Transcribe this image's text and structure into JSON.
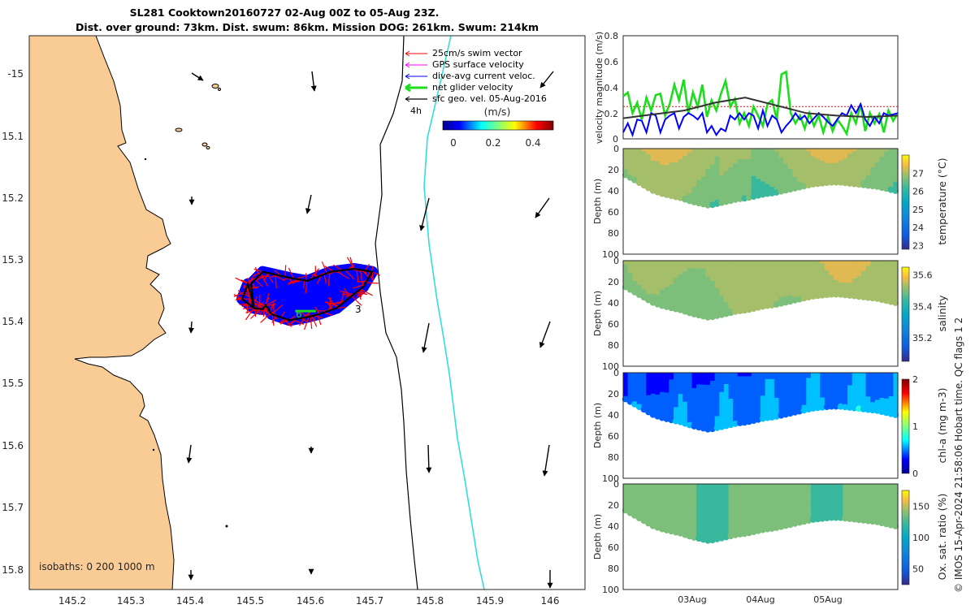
{
  "title": {
    "line1": "SL281 Cooktown20160727 02-Aug 00Z to 05-Aug 23Z.",
    "line2": "Dist. over ground: 73km. Dist. swum: 86km. Mission DOG: 261km. Swum: 214km"
  },
  "colors": {
    "land": "#f9cb95",
    "track_red": "#ff0000",
    "track_blue": "#0000ff",
    "track_black": "#000000",
    "current_green": "#1edc1e",
    "isobath_cyan": "#33dddd"
  },
  "chart_data": [
    {
      "id": "map",
      "type": "scatter",
      "title": "SL281 Cooktown20160727 02-Aug 00Z to 05-Aug 23Z.",
      "x_ticks": [
        "145.2",
        "145.3",
        "145.4",
        "145.5",
        "145.6",
        "145.7",
        "145.8",
        "145.9",
        "146"
      ],
      "y_ticks": [
        "-15",
        "15.1",
        "15.2",
        "15.3",
        "15.4",
        "15.5",
        "15.6",
        "15.7",
        "15.8"
      ],
      "xlim": [
        145.13,
        146.07
      ],
      "ylim": [
        -15.845,
        -14.93
      ],
      "legend": {
        "position": "top-right",
        "items": [
          {
            "label": "25cm/s swim vector",
            "color": "#ff0000"
          },
          {
            "label": "GPS surface velocity",
            "color": "#ff00ff"
          },
          {
            "label": "dive-avg current veloc.",
            "color": "#0000ff"
          },
          {
            "label": "net glider velocity",
            "color": "#1edc1e"
          },
          {
            "label": "sfc geo. vel. 05-Aug-2016",
            "color": "#000000"
          }
        ],
        "scale_label": "4h"
      },
      "colorbar": {
        "label": "(m/s)",
        "ticks": [
          "0",
          "0.2",
          "0.4"
        ],
        "range": [
          0,
          0.5
        ]
      },
      "isobaths_label": "isobaths: 0   200  1000 m",
      "track_labels": [
        "6",
        "3"
      ],
      "track": [
        [
          145.51,
          -15.38
        ],
        [
          145.505,
          -15.34
        ],
        [
          145.525,
          -15.32
        ],
        [
          145.57,
          -15.33
        ],
        [
          145.6,
          -15.335
        ],
        [
          145.64,
          -15.32
        ],
        [
          145.68,
          -15.315
        ],
        [
          145.71,
          -15.32
        ],
        [
          145.695,
          -15.345
        ],
        [
          145.675,
          -15.36
        ],
        [
          145.65,
          -15.38
        ],
        [
          145.62,
          -15.39
        ],
        [
          145.6,
          -15.395
        ],
        [
          145.57,
          -15.4
        ],
        [
          145.54,
          -15.39
        ],
        [
          145.53,
          -15.375
        ],
        [
          145.525,
          -15.382
        ],
        [
          145.51,
          -15.38
        ],
        [
          145.49,
          -15.365
        ],
        [
          145.5,
          -15.34
        ]
      ],
      "geo_vectors": [
        [
          145.4,
          -15.0
        ],
        [
          145.6,
          -15.0
        ],
        [
          145.8,
          -15.0
        ],
        [
          145.99,
          -15.0
        ],
        [
          145.4,
          -15.2
        ],
        [
          145.6,
          -15.2
        ],
        [
          145.8,
          -15.2
        ],
        [
          145.99,
          -15.2
        ],
        [
          145.4,
          -15.4
        ],
        [
          145.6,
          -15.4
        ],
        [
          145.8,
          -15.4
        ],
        [
          145.99,
          -15.4
        ],
        [
          145.4,
          -15.6
        ],
        [
          145.6,
          -15.6
        ],
        [
          145.8,
          -15.6
        ],
        [
          145.99,
          -15.6
        ],
        [
          145.4,
          -15.8
        ],
        [
          145.6,
          -15.8
        ],
        [
          145.8,
          -15.8
        ],
        [
          145.99,
          -15.8
        ]
      ]
    },
    {
      "id": "velocity",
      "type": "line",
      "ylabel": "velocity magnitude (m/s)",
      "ylim": [
        0,
        0.8
      ],
      "y_ticks": [
        "0",
        "0.2",
        "0.4",
        "0.6",
        "0.8"
      ],
      "reference_value": 0.25,
      "series": [
        {
          "name": "net glider velocity",
          "color": "#1edc1e",
          "values": [
            0.33,
            0.36,
            0.2,
            0.28,
            0.15,
            0.32,
            0.22,
            0.34,
            0.35,
            0.18,
            0.27,
            0.42,
            0.3,
            0.46,
            0.2,
            0.36,
            0.25,
            0.42,
            0.17,
            0.3,
            0.22,
            0.35,
            0.45,
            0.25,
            0.31,
            0.12,
            0.2,
            0.1,
            0.25,
            0.18,
            0.1,
            0.27,
            0.3,
            0.15,
            0.5,
            0.52,
            0.2,
            0.12,
            0.18,
            0.08,
            0.2,
            0.1,
            0.18,
            0.05,
            0.17,
            0.06,
            0.15,
            0.1,
            0.04,
            0.2,
            0.12,
            0.27,
            0.06,
            0.2,
            0.12,
            0.19,
            0.05,
            0.22,
            0.14,
            0.2
          ]
        },
        {
          "name": "dive-avg current veloc.",
          "color": "#0000ff",
          "values": [
            0.05,
            0.12,
            0.03,
            0.15,
            0.14,
            0.05,
            0.2,
            0.18,
            0.05,
            0.15,
            0.18,
            0.2,
            0.08,
            0.17,
            0.2,
            0.18,
            0.15,
            0.2,
            0.05,
            0.1,
            0.03,
            0.08,
            0.06,
            0.18,
            0.15,
            0.2,
            0.15,
            0.2,
            0.18,
            0.08,
            0.22,
            0.1,
            0.18,
            0.15,
            0.05,
            0.1,
            0.14,
            0.2,
            0.15,
            0.18,
            0.12,
            0.16,
            0.2,
            0.17,
            0.13,
            0.1,
            0.15,
            0.2,
            0.18,
            0.26,
            0.2,
            0.27,
            0.15,
            0.1,
            0.17,
            0.12,
            0.2,
            0.18,
            0.19,
            0.2
          ]
        },
        {
          "name": "sfc geo. vel.",
          "color": "#333333",
          "values": [
            0.16,
            0.19,
            0.22,
            0.28,
            0.32,
            0.26,
            0.2,
            0.18,
            0.17,
            0.18
          ]
        }
      ]
    },
    {
      "id": "temperature",
      "type": "heatmap",
      "ylabel": "Depth (m)",
      "cblabel": "temperature (°C)",
      "y_ticks": [
        "0",
        "20",
        "40",
        "60",
        "80",
        "100"
      ],
      "ylim": [
        0,
        100
      ],
      "cb_ticks": [
        "23",
        "24",
        "25",
        "26",
        "27"
      ],
      "cb_range": [
        22.8,
        28
      ],
      "colormap": "parula-like",
      "mean_value": 26.2,
      "profile_depths": [
        25,
        30,
        35,
        40,
        43,
        45,
        47,
        50,
        52,
        54,
        52,
        50,
        48,
        47,
        45,
        43,
        42,
        40,
        38,
        36,
        34,
        33,
        32,
        32,
        33,
        34,
        35,
        36,
        38,
        40
      ]
    },
    {
      "id": "salinity",
      "type": "heatmap",
      "ylabel": "Depth (m)",
      "cblabel": "salinity",
      "y_ticks": [
        "0",
        "20",
        "40",
        "60",
        "80",
        "100"
      ],
      "ylim": [
        0,
        100
      ],
      "cb_ticks": [
        "35.2",
        "35.4",
        "35.6"
      ],
      "cb_range": [
        35.05,
        35.65
      ],
      "mean_value": 35.45,
      "profile_depths": [
        25,
        30,
        35,
        40,
        43,
        45,
        47,
        50,
        52,
        54,
        52,
        50,
        48,
        47,
        45,
        43,
        42,
        40,
        38,
        36,
        34,
        33,
        32,
        32,
        33,
        34,
        35,
        36,
        38,
        40
      ]
    },
    {
      "id": "chla",
      "type": "heatmap",
      "ylabel": "Depth (m)",
      "cblabel": "chl-a (mg m-3)",
      "y_ticks": [
        "0",
        "20",
        "40",
        "60",
        "80",
        "100"
      ],
      "ylim": [
        0,
        100
      ],
      "cb_ticks": [
        "0",
        "1",
        "2"
      ],
      "cb_range": [
        0,
        2
      ],
      "mean_value": 0.35,
      "profile_depths": [
        25,
        30,
        35,
        40,
        43,
        45,
        47,
        50,
        52,
        54,
        52,
        50,
        48,
        47,
        45,
        43,
        42,
        40,
        38,
        36,
        34,
        33,
        32,
        32,
        33,
        34,
        35,
        36,
        38,
        40
      ]
    },
    {
      "id": "oxygen",
      "type": "heatmap",
      "ylabel": "Depth (m)",
      "cblabel": "Ox. sat. ratio (%)",
      "y_ticks": [
        "0",
        "20",
        "40",
        "60",
        "80",
        "100"
      ],
      "ylim": [
        0,
        100
      ],
      "x_ticks": [
        "03Aug",
        "04Aug",
        "05Aug"
      ],
      "cb_ticks": [
        "50",
        "100",
        "150"
      ],
      "cb_range": [
        25,
        175
      ],
      "mean_value": 100,
      "profile_depths": [
        25,
        30,
        35,
        40,
        43,
        45,
        47,
        50,
        52,
        54,
        52,
        50,
        48,
        47,
        45,
        43,
        42,
        40,
        38,
        36,
        34,
        33,
        32,
        32,
        33,
        34,
        35,
        36,
        38,
        40
      ]
    }
  ],
  "credit": "© IMOS 15-Apr-2024 21:58:06 Hobart time. QC flags 1  2"
}
